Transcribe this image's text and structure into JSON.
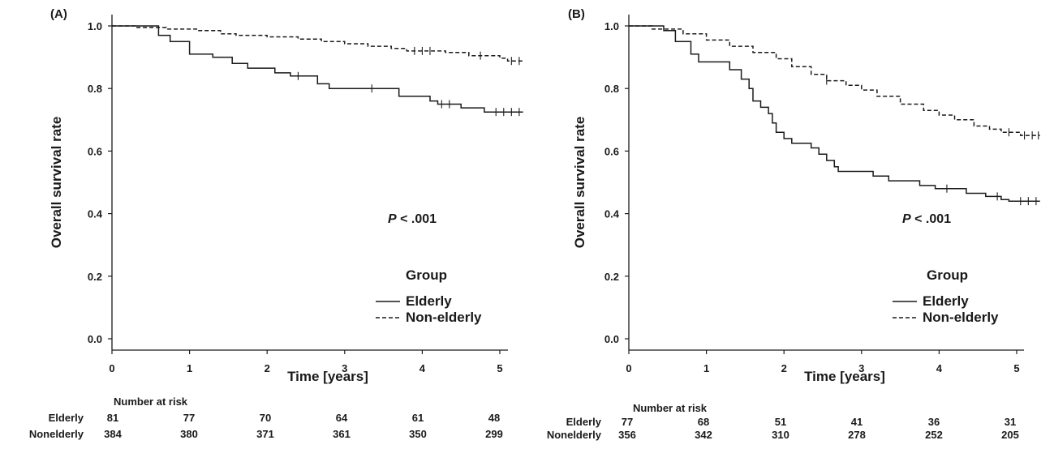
{
  "chart_data": [
    {
      "type": "line",
      "panel_label": "(A)",
      "xlabel": "Time [years]",
      "ylabel": "Overall survival rate",
      "xlim": [
        0,
        5.3
      ],
      "ylim": [
        0,
        1.05
      ],
      "x_ticks": [
        0,
        1,
        2,
        3,
        4,
        5
      ],
      "y_ticks": [
        0.0,
        0.2,
        0.4,
        0.6,
        0.8,
        1.0
      ],
      "y_tick_labels": [
        "0.0",
        "0.2",
        "0.4",
        "0.6",
        "0.8",
        "1.0"
      ],
      "annotation": {
        "prefix": "P",
        "text": " < .001"
      },
      "legend": {
        "title": "Group",
        "position": "right"
      },
      "grid": false,
      "series": [
        {
          "name": "Elderly",
          "style": "solid",
          "steps": [
            [
              0,
              1.0
            ],
            [
              0.5,
              1.0
            ],
            [
              0.6,
              0.97
            ],
            [
              0.75,
              0.95
            ],
            [
              1.0,
              0.91
            ],
            [
              1.3,
              0.9
            ],
            [
              1.55,
              0.88
            ],
            [
              1.75,
              0.865
            ],
            [
              2.1,
              0.85
            ],
            [
              2.3,
              0.84
            ],
            [
              2.65,
              0.815
            ],
            [
              2.8,
              0.8
            ],
            [
              3.7,
              0.775
            ],
            [
              4.1,
              0.76
            ],
            [
              4.2,
              0.75
            ],
            [
              4.5,
              0.738
            ],
            [
              4.8,
              0.725
            ],
            [
              5.3,
              0.725
            ]
          ],
          "censors": [
            [
              2.4,
              0.84
            ],
            [
              3.35,
              0.8
            ],
            [
              4.25,
              0.75
            ],
            [
              4.35,
              0.75
            ],
            [
              4.95,
              0.725
            ],
            [
              5.05,
              0.725
            ],
            [
              5.15,
              0.725
            ],
            [
              5.25,
              0.725
            ]
          ]
        },
        {
          "name": "Non-elderly",
          "style": "dashed",
          "steps": [
            [
              0,
              1.0
            ],
            [
              0.3,
              0.995
            ],
            [
              0.7,
              0.99
            ],
            [
              1.1,
              0.985
            ],
            [
              1.4,
              0.975
            ],
            [
              1.6,
              0.97
            ],
            [
              2.0,
              0.965
            ],
            [
              2.4,
              0.958
            ],
            [
              2.7,
              0.95
            ],
            [
              3.0,
              0.943
            ],
            [
              3.3,
              0.935
            ],
            [
              3.6,
              0.928
            ],
            [
              3.8,
              0.92
            ],
            [
              4.3,
              0.915
            ],
            [
              4.6,
              0.905
            ],
            [
              5.0,
              0.897
            ],
            [
              5.1,
              0.888
            ],
            [
              5.3,
              0.888
            ]
          ],
          "censors": [
            [
              3.9,
              0.92
            ],
            [
              4.0,
              0.92
            ],
            [
              4.1,
              0.92
            ],
            [
              4.75,
              0.905
            ],
            [
              5.15,
              0.888
            ],
            [
              5.25,
              0.888
            ]
          ]
        }
      ],
      "risk_table": {
        "heading": "Number at risk",
        "rows": [
          {
            "label": "Elderly",
            "values": [
              "81",
              "77",
              "70",
              "64",
              "61",
              "48"
            ]
          },
          {
            "label": "Nonelderly",
            "values": [
              "384",
              "380",
              "371",
              "361",
              "350",
              "299"
            ]
          }
        ]
      }
    },
    {
      "type": "line",
      "panel_label": "(B)",
      "xlabel": "Time [years]",
      "ylabel": "Overall survival rate",
      "xlim": [
        0,
        5.3
      ],
      "ylim": [
        0,
        1.05
      ],
      "x_ticks": [
        0,
        1,
        2,
        3,
        4,
        5
      ],
      "y_ticks": [
        0.0,
        0.2,
        0.4,
        0.6,
        0.8,
        1.0
      ],
      "y_tick_labels": [
        "0.0",
        "0.2",
        "0.4",
        "0.6",
        "0.8",
        "1.0"
      ],
      "annotation": {
        "prefix": "P",
        "text": " < .001"
      },
      "legend": {
        "title": "Group",
        "position": "right"
      },
      "grid": false,
      "series": [
        {
          "name": "Elderly",
          "style": "solid",
          "steps": [
            [
              0,
              1.0
            ],
            [
              0.45,
              0.985
            ],
            [
              0.6,
              0.95
            ],
            [
              0.8,
              0.91
            ],
            [
              0.9,
              0.885
            ],
            [
              1.3,
              0.86
            ],
            [
              1.45,
              0.83
            ],
            [
              1.55,
              0.8
            ],
            [
              1.6,
              0.76
            ],
            [
              1.7,
              0.74
            ],
            [
              1.8,
              0.72
            ],
            [
              1.85,
              0.69
            ],
            [
              1.9,
              0.66
            ],
            [
              2.0,
              0.64
            ],
            [
              2.1,
              0.625
            ],
            [
              2.35,
              0.61
            ],
            [
              2.45,
              0.59
            ],
            [
              2.55,
              0.57
            ],
            [
              2.65,
              0.55
            ],
            [
              2.7,
              0.535
            ],
            [
              3.15,
              0.52
            ],
            [
              3.35,
              0.505
            ],
            [
              3.75,
              0.49
            ],
            [
              3.95,
              0.48
            ],
            [
              4.35,
              0.465
            ],
            [
              4.6,
              0.455
            ],
            [
              4.8,
              0.445
            ],
            [
              4.9,
              0.44
            ],
            [
              5.3,
              0.44
            ]
          ],
          "censors": [
            [
              4.1,
              0.48
            ],
            [
              4.75,
              0.455
            ],
            [
              5.05,
              0.44
            ],
            [
              5.15,
              0.44
            ],
            [
              5.25,
              0.44
            ]
          ]
        },
        {
          "name": "Non-elderly",
          "style": "dashed",
          "steps": [
            [
              0,
              1.0
            ],
            [
              0.3,
              0.99
            ],
            [
              0.7,
              0.975
            ],
            [
              1.0,
              0.955
            ],
            [
              1.3,
              0.935
            ],
            [
              1.6,
              0.915
            ],
            [
              1.9,
              0.895
            ],
            [
              2.1,
              0.87
            ],
            [
              2.35,
              0.845
            ],
            [
              2.55,
              0.825
            ],
            [
              2.8,
              0.81
            ],
            [
              3.0,
              0.795
            ],
            [
              3.2,
              0.775
            ],
            [
              3.5,
              0.75
            ],
            [
              3.8,
              0.73
            ],
            [
              4.0,
              0.715
            ],
            [
              4.2,
              0.7
            ],
            [
              4.45,
              0.68
            ],
            [
              4.65,
              0.67
            ],
            [
              4.8,
              0.66
            ],
            [
              5.05,
              0.65
            ],
            [
              5.3,
              0.65
            ]
          ],
          "censors": [
            [
              2.55,
              0.825
            ],
            [
              4.9,
              0.66
            ],
            [
              5.1,
              0.65
            ],
            [
              5.2,
              0.65
            ],
            [
              5.28,
              0.65
            ]
          ]
        }
      ],
      "risk_table": {
        "heading": "Number at risk",
        "rows": [
          {
            "label": "Elderly",
            "values": [
              "77",
              "68",
              "51",
              "41",
              "36",
              "31"
            ]
          },
          {
            "label": "Nonelderly",
            "values": [
              "356",
              "342",
              "310",
              "278",
              "252",
              "205"
            ]
          }
        ]
      }
    }
  ]
}
